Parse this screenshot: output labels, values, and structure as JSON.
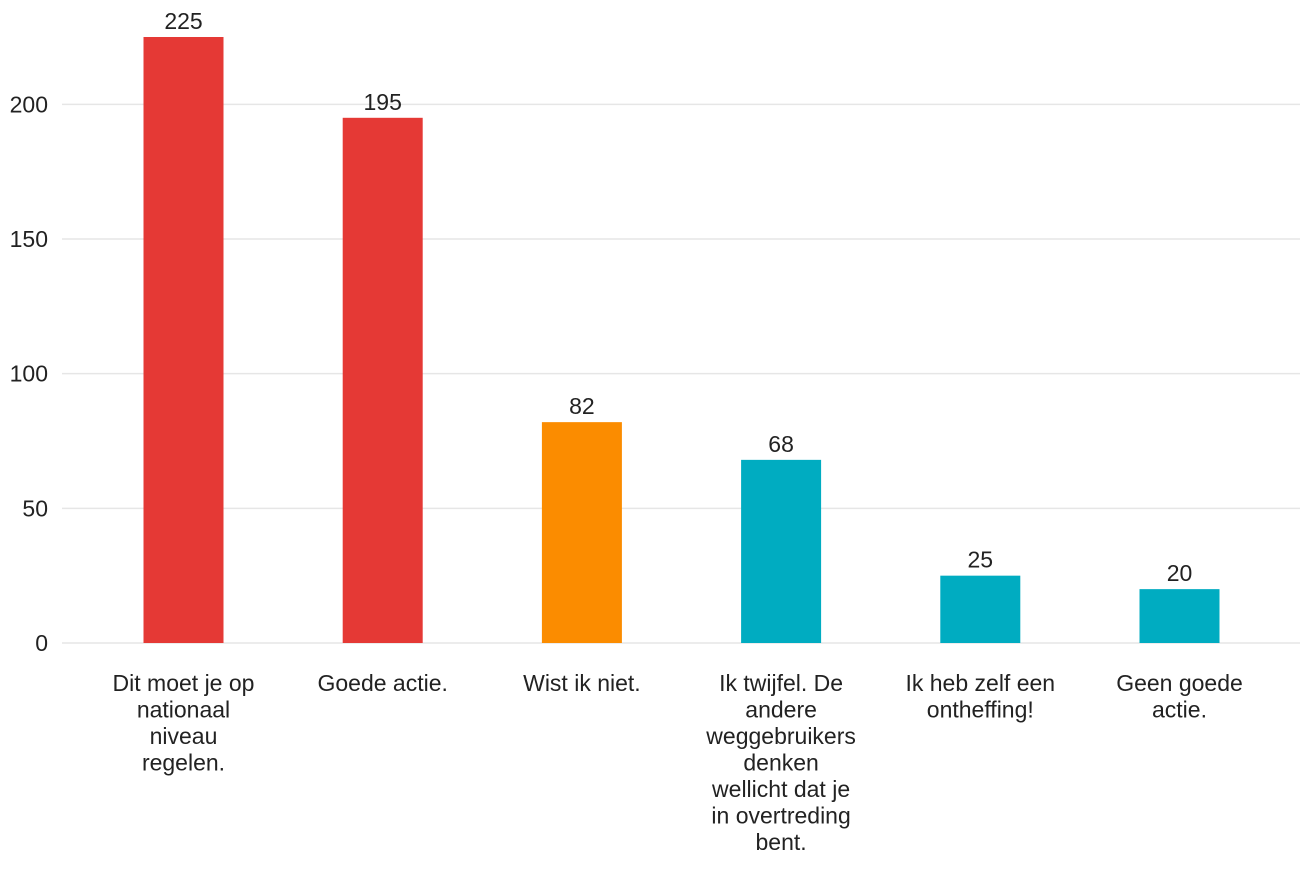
{
  "chart_data": {
    "type": "bar",
    "categories": [
      [
        "Dit moet je op",
        "nationaal",
        "niveau",
        "regelen."
      ],
      [
        "Goede actie."
      ],
      [
        "Wist ik niet."
      ],
      [
        "Ik twijfel. De",
        "andere",
        "weggebruikers",
        "denken",
        "wellicht dat je",
        "in overtreding",
        "bent."
      ],
      [
        "Ik heb zelf een",
        "ontheffing!"
      ],
      [
        "Geen goede",
        "actie."
      ]
    ],
    "values": [
      225,
      195,
      82,
      68,
      25,
      20
    ],
    "colors": [
      "#e53935",
      "#e53935",
      "#fb8c00",
      "#00acc1",
      "#00acc1",
      "#00acc1"
    ],
    "yticks": [
      0,
      50,
      100,
      150,
      200
    ],
    "ylim": [
      0,
      225
    ],
    "grid": true,
    "title": "",
    "xlabel": "",
    "ylabel": ""
  }
}
